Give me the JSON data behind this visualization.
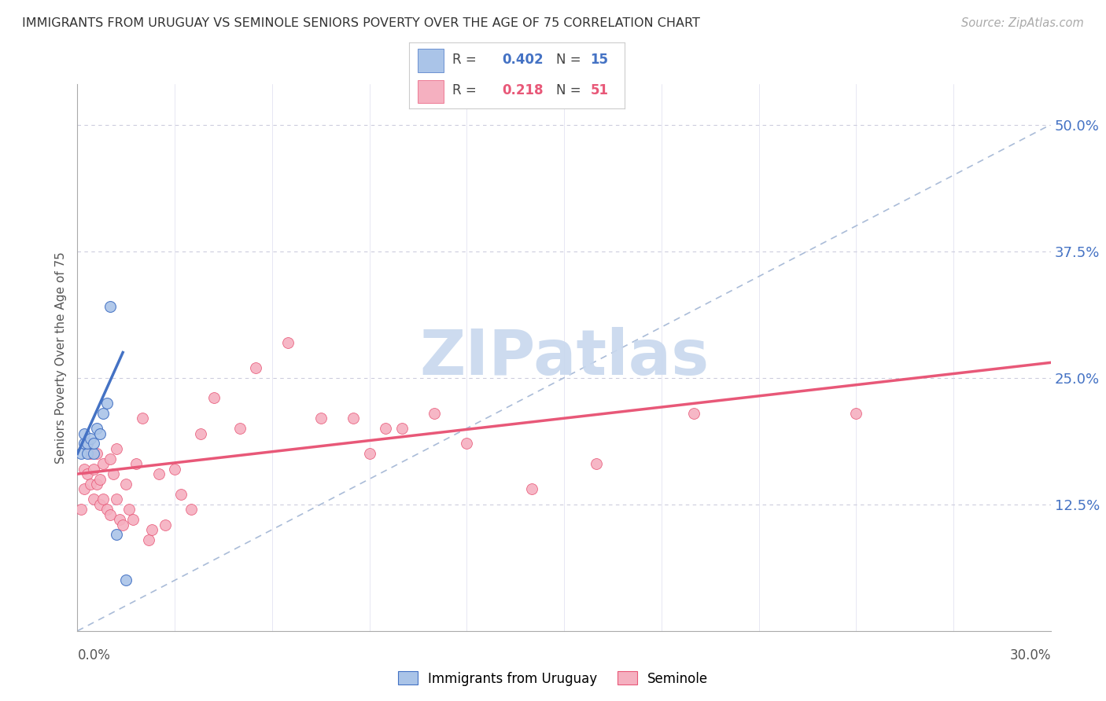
{
  "title": "IMMIGRANTS FROM URUGUAY VS SEMINOLE SENIORS POVERTY OVER THE AGE OF 75 CORRELATION CHART",
  "source": "Source: ZipAtlas.com",
  "ylabel": "Seniors Poverty Over the Age of 75",
  "right_yticks": [
    "50.0%",
    "37.5%",
    "25.0%",
    "12.5%"
  ],
  "right_ytick_vals": [
    0.5,
    0.375,
    0.25,
    0.125
  ],
  "xlim": [
    0.0,
    0.3
  ],
  "ylim": [
    0.0,
    0.54
  ],
  "color_uruguay": "#aac4e8",
  "color_seminole": "#f5b0c0",
  "color_line_uruguay": "#4472c4",
  "color_line_seminole": "#e85878",
  "color_diagonal": "#aabcd8",
  "watermark_color": "#c8d8ee",
  "uruguay_x": [
    0.001,
    0.002,
    0.002,
    0.003,
    0.003,
    0.004,
    0.005,
    0.005,
    0.006,
    0.007,
    0.008,
    0.009,
    0.01,
    0.012,
    0.015
  ],
  "uruguay_y": [
    0.175,
    0.185,
    0.195,
    0.175,
    0.185,
    0.19,
    0.175,
    0.185,
    0.2,
    0.195,
    0.215,
    0.225,
    0.32,
    0.095,
    0.05
  ],
  "seminole_x": [
    0.001,
    0.002,
    0.002,
    0.003,
    0.003,
    0.004,
    0.004,
    0.005,
    0.005,
    0.006,
    0.006,
    0.007,
    0.007,
    0.008,
    0.008,
    0.009,
    0.01,
    0.01,
    0.011,
    0.012,
    0.012,
    0.013,
    0.014,
    0.015,
    0.016,
    0.017,
    0.018,
    0.02,
    0.022,
    0.023,
    0.025,
    0.027,
    0.03,
    0.032,
    0.035,
    0.038,
    0.042,
    0.05,
    0.055,
    0.065,
    0.075,
    0.085,
    0.09,
    0.095,
    0.1,
    0.11,
    0.12,
    0.14,
    0.16,
    0.19,
    0.24
  ],
  "seminole_y": [
    0.12,
    0.16,
    0.14,
    0.155,
    0.185,
    0.175,
    0.145,
    0.16,
    0.13,
    0.145,
    0.175,
    0.15,
    0.125,
    0.13,
    0.165,
    0.12,
    0.115,
    0.17,
    0.155,
    0.13,
    0.18,
    0.11,
    0.105,
    0.145,
    0.12,
    0.11,
    0.165,
    0.21,
    0.09,
    0.1,
    0.155,
    0.105,
    0.16,
    0.135,
    0.12,
    0.195,
    0.23,
    0.2,
    0.26,
    0.285,
    0.21,
    0.21,
    0.175,
    0.2,
    0.2,
    0.215,
    0.185,
    0.14,
    0.165,
    0.215,
    0.215
  ],
  "uru_line_x": [
    0.0,
    0.014
  ],
  "uru_line_y": [
    0.175,
    0.275
  ],
  "sem_line_x": [
    0.0,
    0.3
  ],
  "sem_line_y": [
    0.155,
    0.265
  ]
}
